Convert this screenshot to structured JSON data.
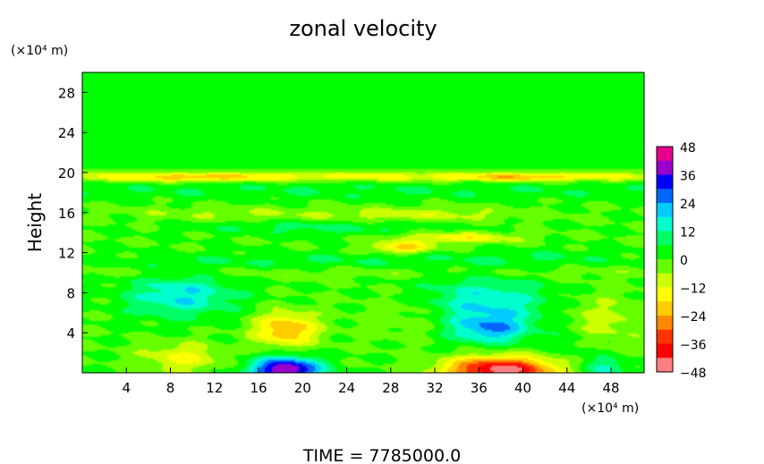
{
  "chart_data": {
    "type": "heatmap",
    "title": "zonal velocity",
    "xlabel": "",
    "ylabel": "Height",
    "x_unit_label": "(×10⁴ m)",
    "y_unit_label": "(×10⁴ m)",
    "xlim": [
      0,
      51
    ],
    "ylim": [
      0,
      30
    ],
    "x_ticks": [
      4,
      8,
      12,
      16,
      20,
      24,
      28,
      32,
      36,
      40,
      44,
      48
    ],
    "y_ticks": [
      4,
      8,
      12,
      16,
      20,
      24,
      28
    ],
    "grid": false,
    "colorbar": {
      "placement": "right",
      "range": [
        -48,
        48
      ],
      "ticks": [
        48,
        36,
        24,
        12,
        0,
        -12,
        -24,
        -36,
        -48
      ],
      "colors": [
        "#e8008c",
        "#9900cc",
        "#0000ff",
        "#0066ff",
        "#00ccff",
        "#00ffcc",
        "#00ff66",
        "#00ff00",
        "#66ff00",
        "#ccff00",
        "#ffff00",
        "#ffcc00",
        "#ff8800",
        "#ff3300",
        "#ff0000",
        "#ff8080"
      ]
    },
    "background_value": 0,
    "features": [
      {
        "name": "upper-layer",
        "x": 25,
        "y": 25,
        "sx": 40,
        "sy": 4,
        "value": 3
      },
      {
        "name": "band-20",
        "x": 25,
        "y": 19.6,
        "sx": 40,
        "sy": 0.35,
        "value": -15
      },
      {
        "name": "band-20b",
        "x": 10,
        "y": 19.5,
        "sx": 4,
        "sy": 0.3,
        "value": -10
      },
      {
        "name": "band-20c",
        "x": 40,
        "y": 19.5,
        "sx": 4,
        "sy": 0.3,
        "value": -10
      },
      {
        "name": "band-18",
        "x": 25,
        "y": 18.2,
        "sx": 40,
        "sy": 0.6,
        "value": 5
      },
      {
        "name": "band-16",
        "x": 30,
        "y": 15.8,
        "sx": 7,
        "sy": 0.5,
        "value": -10
      },
      {
        "name": "band-16b",
        "x": 12,
        "y": 15.9,
        "sx": 6,
        "sy": 0.5,
        "value": -6
      },
      {
        "name": "band-14",
        "x": 22,
        "y": 14.5,
        "sx": 8,
        "sy": 0.5,
        "value": 8
      },
      {
        "name": "band-13",
        "x": 34,
        "y": 13.5,
        "sx": 4,
        "sy": 0.4,
        "value": -16
      },
      {
        "name": "band-12",
        "x": 29,
        "y": 12.5,
        "sx": 2,
        "sy": 0.4,
        "value": -20
      },
      {
        "name": "band-11",
        "x": 20,
        "y": 11.2,
        "sx": 12,
        "sy": 0.6,
        "value": 6
      },
      {
        "name": "band-11b",
        "x": 42,
        "y": 11.5,
        "sx": 6,
        "sy": 0.6,
        "value": 5
      },
      {
        "name": "band-10",
        "x": 25,
        "y": 10,
        "sx": 40,
        "sy": 0.4,
        "value": -4
      },
      {
        "name": "warm-8",
        "x": 9,
        "y": 7.7,
        "sx": 3.5,
        "sy": 1.5,
        "value": 18
      },
      {
        "name": "warm-7",
        "x": 36.5,
        "y": 7,
        "sx": 4,
        "sy": 1.8,
        "value": 18
      },
      {
        "name": "warm-4",
        "x": 37,
        "y": 4.3,
        "sx": 2.5,
        "sy": 1,
        "value": 20
      },
      {
        "name": "cool-4",
        "x": 18.5,
        "y": 4.3,
        "sx": 2,
        "sy": 1.2,
        "value": -24
      },
      {
        "name": "cool-6",
        "x": 30,
        "y": 5.5,
        "sx": 3,
        "sy": 1.5,
        "value": -6
      },
      {
        "name": "cool-right",
        "x": 47,
        "y": 5,
        "sx": 2.5,
        "sy": 1.8,
        "value": -10
      },
      {
        "name": "warm-right",
        "x": 45,
        "y": 3,
        "sx": 2,
        "sy": 1.5,
        "value": 6
      },
      {
        "name": "cool-bottom",
        "x": 9,
        "y": 1.5,
        "sx": 2.5,
        "sy": 1,
        "value": -14
      },
      {
        "name": "hot-bottom",
        "x": 18.5,
        "y": 0.3,
        "sx": 2.2,
        "sy": 0.9,
        "value": 44
      },
      {
        "name": "cold-bottom",
        "x": 38,
        "y": 0.3,
        "sx": 3.5,
        "sy": 0.9,
        "value": -46
      },
      {
        "name": "warm-bottom-right",
        "x": 47.5,
        "y": 0.5,
        "sx": 1.5,
        "sy": 0.7,
        "value": 14
      }
    ]
  },
  "footer": {
    "time_label": "TIME  =  7785000.0"
  }
}
